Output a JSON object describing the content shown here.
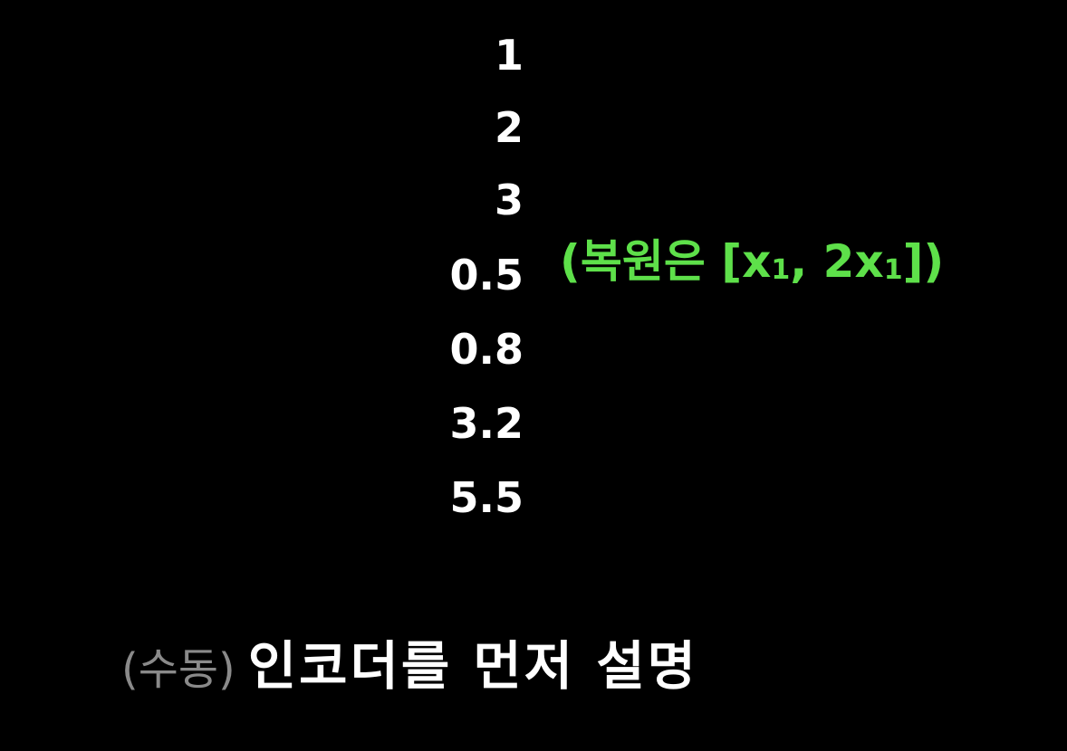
{
  "values": [
    "1",
    "2",
    "3",
    "0.5",
    "0.8",
    "3.2",
    "5.5"
  ],
  "annotation": {
    "open": "(복원은 [x",
    "sub1": "1",
    "mid": ", 2x",
    "sub2": "1",
    "close": "])",
    "color": "#5ee04a"
  },
  "caption": {
    "muted": "(수동)",
    "main": "인코더를 먼저 설명"
  }
}
